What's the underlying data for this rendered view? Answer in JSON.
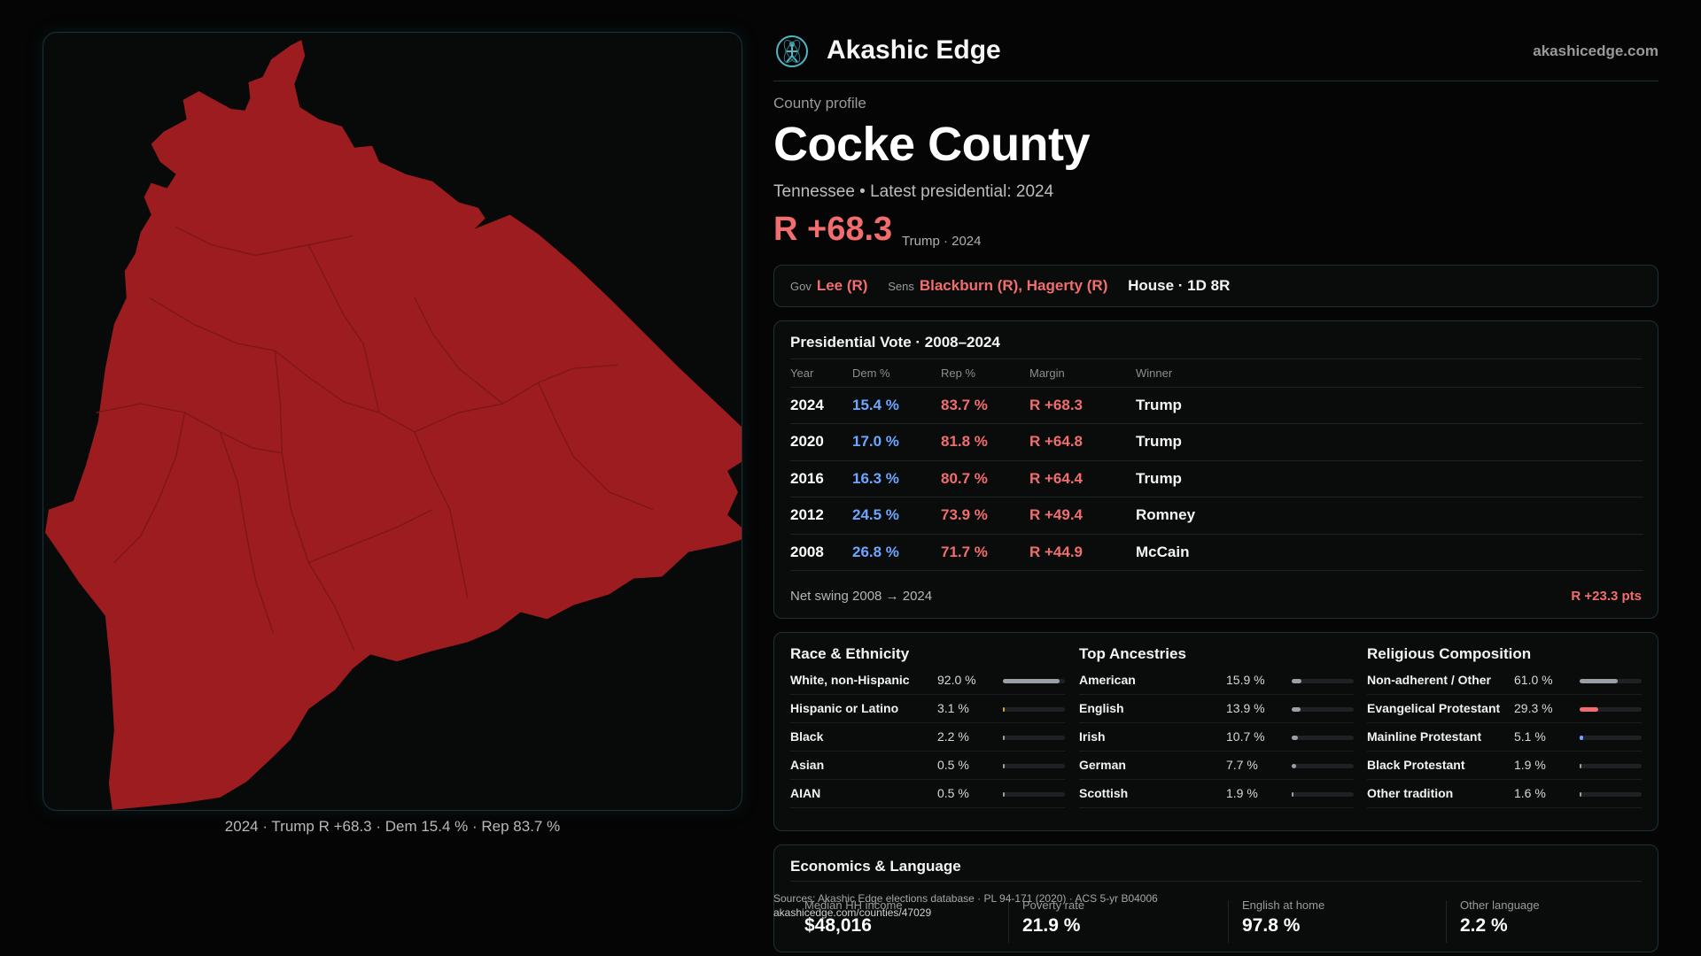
{
  "brand": {
    "name": "Akashic Edge",
    "url": "akashicedge.com",
    "logo_icon": "atom-figure-icon"
  },
  "profile": {
    "kicker": "County profile",
    "county": "Cocke County",
    "subtitle": "Tennessee • Latest presidential: 2024",
    "margin": "R +68.3",
    "margin_note": "Trump · 2024"
  },
  "officials": {
    "gov_label": "Gov",
    "gov_value": "Lee (R)",
    "sens_label": "Sens",
    "sens_value": "Blackburn (R), Hagerty (R)",
    "house": "House · 1D 8R"
  },
  "presidential": {
    "title": "Presidential Vote · 2008–2024",
    "headers": [
      "Year",
      "Dem %",
      "Rep %",
      "Margin",
      "Winner"
    ],
    "rows": [
      {
        "year": "2024",
        "dem": "15.4 %",
        "rep": "83.7 %",
        "margin": "R +68.3",
        "winner": "Trump"
      },
      {
        "year": "2020",
        "dem": "17.0 %",
        "rep": "81.8 %",
        "margin": "R +64.8",
        "winner": "Trump"
      },
      {
        "year": "2016",
        "dem": "16.3 %",
        "rep": "80.7 %",
        "margin": "R +64.4",
        "winner": "Trump"
      },
      {
        "year": "2012",
        "dem": "24.5 %",
        "rep": "73.9 %",
        "margin": "R +49.4",
        "winner": "Romney"
      },
      {
        "year": "2008",
        "dem": "26.8 %",
        "rep": "71.7 %",
        "margin": "R +44.9",
        "winner": "McCain"
      }
    ],
    "net_swing_label": "Net swing 2008 → 2024",
    "net_swing_value": "R +23.3 pts"
  },
  "race": {
    "title": "Race & Ethnicity",
    "bar_color": "#9aa0a6",
    "items": [
      {
        "label": "White, non-Hispanic",
        "value": "92.0 %",
        "pct": 92.0,
        "color": "#9aa0a6"
      },
      {
        "label": "Hispanic or Latino",
        "value": "3.1 %",
        "pct": 3.1,
        "color": "#e0a040"
      },
      {
        "label": "Black",
        "value": "2.2 %",
        "pct": 2.2,
        "color": "#9aa0a6"
      },
      {
        "label": "Asian",
        "value": "0.5 %",
        "pct": 0.5,
        "color": "#9aa0a6"
      },
      {
        "label": "AIAN",
        "value": "0.5 %",
        "pct": 0.5,
        "color": "#9aa0a6"
      }
    ]
  },
  "ancestry": {
    "title": "Top Ancestries",
    "items": [
      {
        "label": "American",
        "value": "15.9 %",
        "pct": 15.9,
        "color": "#9aa0a6"
      },
      {
        "label": "English",
        "value": "13.9 %",
        "pct": 13.9,
        "color": "#9aa0a6"
      },
      {
        "label": "Irish",
        "value": "10.7 %",
        "pct": 10.7,
        "color": "#9aa0a6"
      },
      {
        "label": "German",
        "value": "7.7 %",
        "pct": 7.7,
        "color": "#9aa0a6"
      },
      {
        "label": "Scottish",
        "value": "1.9 %",
        "pct": 1.9,
        "color": "#9aa0a6"
      }
    ]
  },
  "religion": {
    "title": "Religious Composition",
    "items": [
      {
        "label": "Non-adherent / Other",
        "value": "61.0 %",
        "pct": 61.0,
        "color": "#9aa0a6"
      },
      {
        "label": "Evangelical Protestant",
        "value": "29.3 %",
        "pct": 29.3,
        "color": "#f26d6d"
      },
      {
        "label": "Mainline Protestant",
        "value": "5.1 %",
        "pct": 5.1,
        "color": "#6ea6ff"
      },
      {
        "label": "Black Protestant",
        "value": "1.9 %",
        "pct": 1.9,
        "color": "#9aa0a6"
      },
      {
        "label": "Other tradition",
        "value": "1.6 %",
        "pct": 1.6,
        "color": "#9aa0a6"
      }
    ]
  },
  "economics": {
    "title": "Economics & Language",
    "stats": [
      {
        "label": "Median HH income",
        "value": "$48,016"
      },
      {
        "label": "Poverty rate",
        "value": "21.9 %"
      },
      {
        "label": "English at home",
        "value": "97.8 %"
      },
      {
        "label": "Other language",
        "value": "2.2 %"
      }
    ]
  },
  "map": {
    "caption": "2024 · Trump R +68.3 · Dem 15.4 % · Rep 83.7 %",
    "fill_color": "#9c1c1f",
    "border_color": "#7e1618"
  },
  "sources": {
    "line1": "Sources: Akashic Edge elections database · PL 94-171 (2020) · ACS 5-yr B04006",
    "line2": "akashicedge.com/counties/47029"
  }
}
